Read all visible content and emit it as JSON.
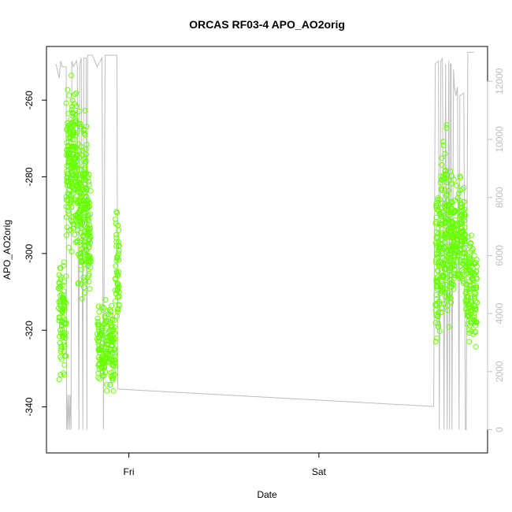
{
  "chart_data": {
    "type": "scatter",
    "title": "ORCAS RF03-4 APO_AO2orig",
    "xlabel": "Date",
    "ylabel": "APO_AO2orig",
    "x_ticks": [
      {
        "label": "Fri",
        "t": 0
      },
      {
        "label": "Sat",
        "t": 24
      }
    ],
    "y_left": {
      "lim": [
        -352,
        -246
      ],
      "ticks": [
        -260,
        -280,
        -300,
        -320,
        -340
      ]
    },
    "y_right": {
      "lim": [
        -800,
        13200
      ],
      "ticks": [
        0,
        2000,
        4000,
        6000,
        8000,
        10000,
        12000
      ],
      "label": ""
    },
    "colors": {
      "points": "#66ff00",
      "line": "#bebebe",
      "right_axis": "#bebebe",
      "axis": "#000000"
    },
    "point_clusters": [
      {
        "t_start": -8.9,
        "t_end": -7.9,
        "y_min": -338,
        "y_max": -297,
        "n": 90
      },
      {
        "t_start": -7.9,
        "t_end": -6.6,
        "y_min": -304,
        "y_max": -248,
        "n": 180
      },
      {
        "t_start": -6.6,
        "t_end": -5.3,
        "y_min": -316,
        "y_max": -256,
        "n": 160
      },
      {
        "t_start": -5.3,
        "t_end": -4.8,
        "y_min": -315,
        "y_max": -275,
        "n": 60
      },
      {
        "t_start": -4.0,
        "t_end": -1.7,
        "y_min": -340,
        "y_max": -310,
        "n": 170
      },
      {
        "t_start": -1.7,
        "t_end": -1.2,
        "y_min": -330,
        "y_max": -281,
        "n": 50
      },
      {
        "t_start": 38.7,
        "t_end": 39.4,
        "y_min": -335,
        "y_max": -271,
        "n": 80
      },
      {
        "t_start": 39.4,
        "t_end": 40.8,
        "y_min": -330,
        "y_max": -262,
        "n": 160
      },
      {
        "t_start": 40.8,
        "t_end": 42.5,
        "y_min": -315,
        "y_max": -275,
        "n": 160
      },
      {
        "t_start": 42.5,
        "t_end": 44.0,
        "y_min": -330,
        "y_max": -290,
        "n": 130
      }
    ],
    "line_series": {
      "name": "",
      "points": [
        [
          -9.2,
          12600
        ],
        [
          -8.8,
          12100
        ],
        [
          -8.6,
          12700
        ],
        [
          -8.4,
          12500
        ],
        [
          -7.9,
          12500
        ],
        [
          -7.85,
          0
        ],
        [
          -7.8,
          1200
        ],
        [
          -7.7,
          0
        ],
        [
          -7.6,
          1200
        ],
        [
          -7.5,
          0
        ],
        [
          -7.4,
          1200
        ],
        [
          -7.3,
          0
        ],
        [
          -7.2,
          12700
        ],
        [
          -7.0,
          12500
        ],
        [
          -6.6,
          12700
        ],
        [
          -6.5,
          12500
        ],
        [
          -6.3,
          0
        ],
        [
          -6.2,
          12600
        ],
        [
          -6.0,
          12800
        ],
        [
          -5.8,
          0
        ],
        [
          -5.7,
          12800
        ],
        [
          -5.6,
          12800
        ],
        [
          -5.4,
          12800
        ],
        [
          -5.3,
          0
        ],
        [
          -5.2,
          12900
        ],
        [
          -4.6,
          12900
        ],
        [
          -4.0,
          12500
        ],
        [
          -3.4,
          12800
        ],
        [
          -3.2,
          0
        ],
        [
          -3.0,
          12900
        ],
        [
          -1.5,
          12900
        ],
        [
          -1.4,
          1400
        ],
        [
          38.5,
          800
        ],
        [
          38.7,
          12600
        ],
        [
          39.1,
          12700
        ],
        [
          39.2,
          0
        ],
        [
          39.4,
          12700
        ],
        [
          39.6,
          12800
        ],
        [
          39.8,
          0
        ],
        [
          40.0,
          12600
        ],
        [
          40.2,
          0
        ],
        [
          40.4,
          12700
        ],
        [
          40.5,
          0
        ],
        [
          40.6,
          12600
        ],
        [
          40.7,
          12600
        ],
        [
          40.8,
          0
        ],
        [
          41.0,
          12400
        ],
        [
          41.1,
          11800
        ],
        [
          41.3,
          11500
        ],
        [
          41.5,
          11800
        ],
        [
          41.7,
          0
        ],
        [
          41.8,
          11500
        ],
        [
          42.3,
          11600
        ],
        [
          42.5,
          0
        ],
        [
          42.6,
          0
        ],
        [
          42.8,
          13000
        ],
        [
          43.4,
          13000
        ],
        [
          43.6,
          13000
        ]
      ]
    },
    "grid": false,
    "legend": "none"
  }
}
